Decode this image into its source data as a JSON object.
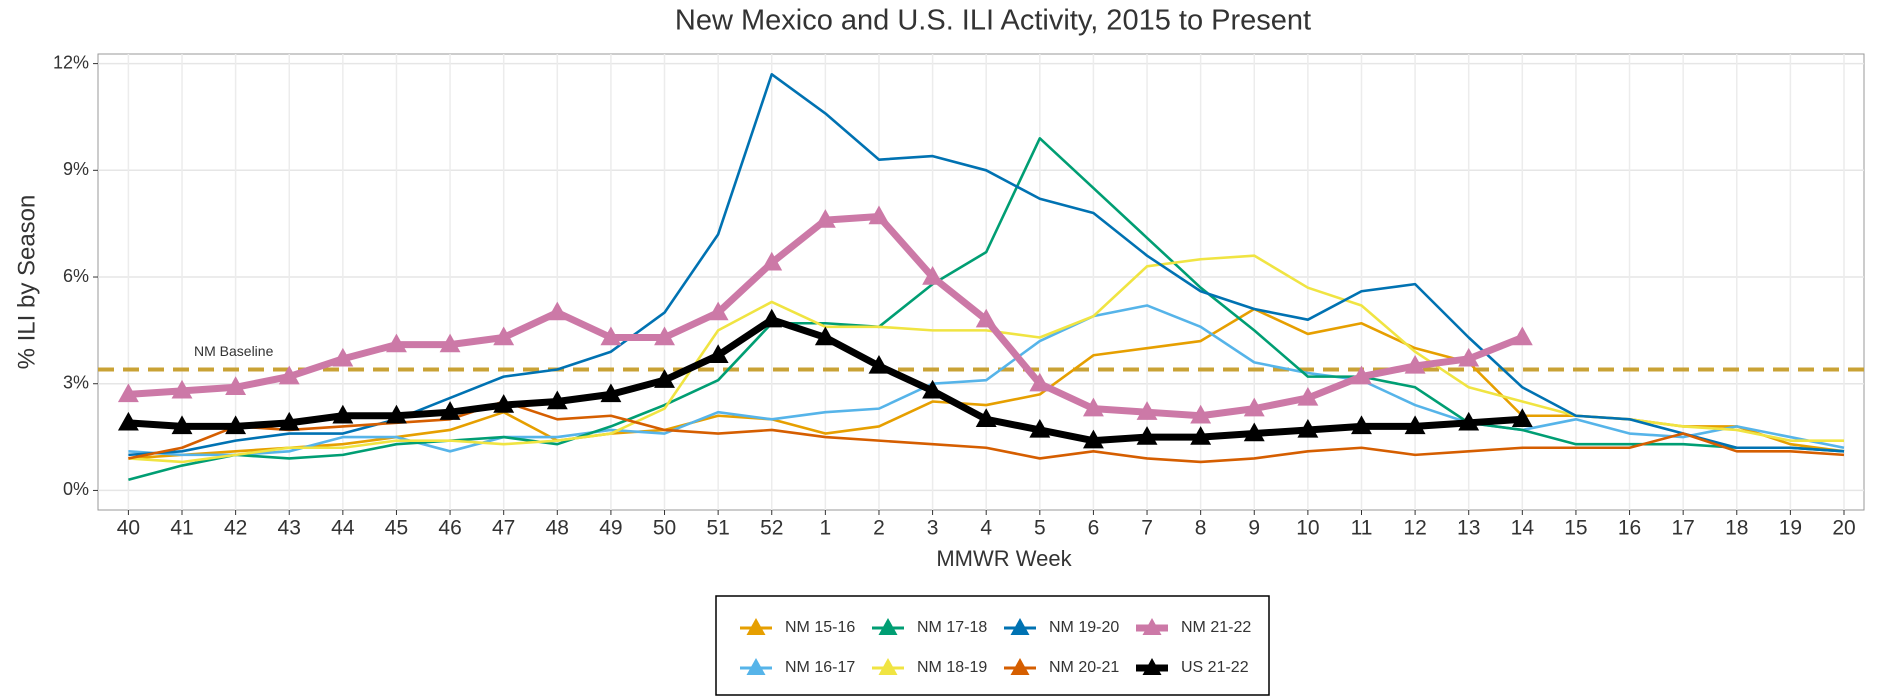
{
  "chart_data": {
    "type": "line",
    "title": "New Mexico and U.S. ILI Activity, 2015 to Present",
    "x_label": "MMWR Week",
    "y_label": "% ILI by Season",
    "categories": [
      "40",
      "41",
      "42",
      "43",
      "44",
      "45",
      "46",
      "47",
      "48",
      "49",
      "50",
      "51",
      "52",
      "1",
      "2",
      "3",
      "4",
      "5",
      "6",
      "7",
      "8",
      "9",
      "10",
      "11",
      "12",
      "13",
      "14",
      "15",
      "16",
      "17",
      "18",
      "19",
      "20"
    ],
    "ylim": [
      -0.55,
      12.27
    ],
    "yticks": [
      {
        "value": 0,
        "label": "0%"
      },
      {
        "value": 3,
        "label": "3%"
      },
      {
        "value": 6,
        "label": "6%"
      },
      {
        "value": 9,
        "label": "9%"
      },
      {
        "value": 12,
        "label": "12%"
      }
    ],
    "grid": true,
    "baseline": {
      "value": 3.4,
      "label": "NM Baseline",
      "color": "#c9a235"
    },
    "series": [
      {
        "name": "NM 15-16",
        "color": "#E69F00",
        "values": [
          0.9,
          1.0,
          1.1,
          1.2,
          1.3,
          1.5,
          1.7,
          2.2,
          1.4,
          1.6,
          1.7,
          2.1,
          2.0,
          1.6,
          1.8,
          2.5,
          2.4,
          2.7,
          3.8,
          4.0,
          4.2,
          5.1,
          4.4,
          4.7,
          4.0,
          3.6,
          2.1,
          2.1,
          2.0,
          1.8,
          1.8,
          1.3,
          1.1
        ]
      },
      {
        "name": "NM 16-17",
        "color": "#56B4E9",
        "values": [
          1.1,
          1.0,
          1.0,
          1.1,
          1.5,
          1.5,
          1.1,
          1.5,
          1.5,
          1.7,
          1.6,
          2.2,
          2.0,
          2.2,
          2.3,
          3.0,
          3.1,
          4.2,
          4.9,
          5.2,
          4.6,
          3.6,
          3.3,
          3.1,
          2.4,
          1.9,
          1.7,
          2.0,
          1.6,
          1.5,
          1.8,
          1.5,
          1.2
        ]
      },
      {
        "name": "NM 17-18",
        "color": "#009E73",
        "values": [
          0.3,
          0.7,
          1.0,
          0.9,
          1.0,
          1.3,
          1.4,
          1.5,
          1.3,
          1.8,
          2.4,
          3.1,
          4.7,
          4.7,
          4.6,
          5.8,
          6.7,
          9.9,
          8.5,
          7.1,
          5.7,
          4.5,
          3.2,
          3.2,
          2.9,
          1.9,
          1.7,
          1.3,
          1.3,
          1.3,
          1.2,
          1.2,
          1.1
        ]
      },
      {
        "name": "NM 18-19",
        "color": "#F0E442",
        "values": [
          0.9,
          0.8,
          1.0,
          1.2,
          1.2,
          1.4,
          1.4,
          1.3,
          1.4,
          1.6,
          2.3,
          4.5,
          5.3,
          4.6,
          4.6,
          4.5,
          4.5,
          4.3,
          4.9,
          6.3,
          6.5,
          6.6,
          5.7,
          5.2,
          3.9,
          2.9,
          2.5,
          2.1,
          2.0,
          1.8,
          1.7,
          1.4,
          1.4
        ]
      },
      {
        "name": "NM 19-20",
        "color": "#0072B2",
        "values": [
          1.0,
          1.1,
          1.4,
          1.6,
          1.6,
          2.0,
          2.6,
          3.2,
          3.4,
          3.9,
          5.0,
          7.2,
          11.7,
          10.6,
          9.3,
          9.4,
          9.0,
          8.2,
          7.8,
          6.6,
          5.6,
          5.1,
          4.8,
          5.6,
          5.8,
          4.3,
          2.9,
          2.1,
          2.0,
          1.6,
          1.2,
          1.2,
          1.1
        ]
      },
      {
        "name": "NM 20-21",
        "color": "#D55E00",
        "values": [
          0.9,
          1.2,
          1.8,
          1.7,
          1.8,
          1.9,
          2.0,
          2.5,
          2.0,
          2.1,
          1.7,
          1.6,
          1.7,
          1.5,
          1.4,
          1.3,
          1.2,
          0.9,
          1.1,
          0.9,
          0.8,
          0.9,
          1.1,
          1.2,
          1.0,
          1.1,
          1.2,
          1.2,
          1.2,
          1.6,
          1.1,
          1.1,
          1.0
        ]
      },
      {
        "name": "NM 21-22",
        "color": "#CC79A7",
        "marker": "triangle",
        "values": [
          2.7,
          2.8,
          2.9,
          3.2,
          3.7,
          4.1,
          4.1,
          4.3,
          5.0,
          4.3,
          4.3,
          5.0,
          6.4,
          7.6,
          7.7,
          6.0,
          4.8,
          3.0,
          2.3,
          2.2,
          2.1,
          2.3,
          2.6,
          3.2,
          3.5,
          3.7,
          4.3,
          null,
          null,
          null,
          null,
          null,
          null
        ]
      },
      {
        "name": "US 21-22",
        "color": "#000000",
        "marker": "triangle",
        "values": [
          1.9,
          1.8,
          1.8,
          1.9,
          2.1,
          2.1,
          2.2,
          2.4,
          2.5,
          2.7,
          3.1,
          3.8,
          4.8,
          4.3,
          3.5,
          2.8,
          2.0,
          1.7,
          1.4,
          1.5,
          1.5,
          1.6,
          1.7,
          1.8,
          1.8,
          1.9,
          2.0,
          null,
          null,
          null,
          null,
          null,
          null
        ]
      }
    ]
  }
}
